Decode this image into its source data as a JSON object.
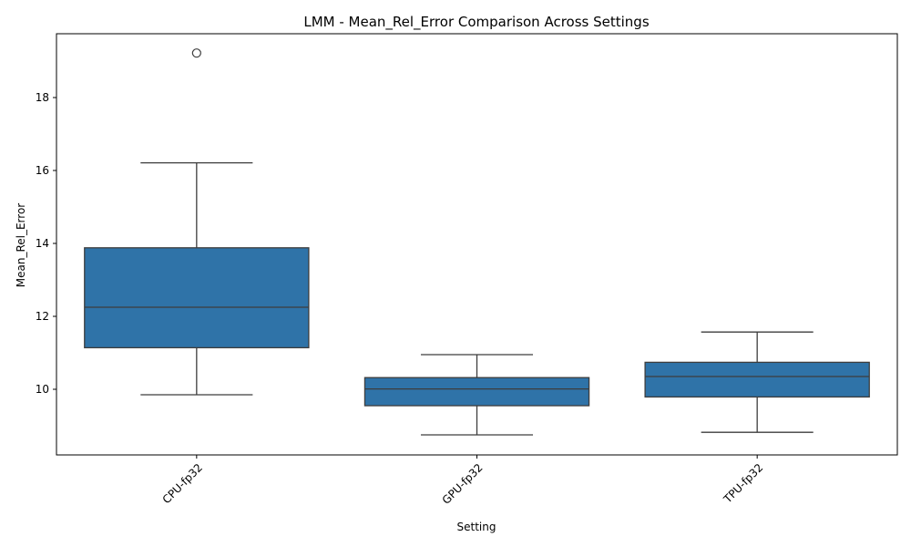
{
  "chart_data": {
    "type": "box",
    "title": "LMM - Mean_Rel_Error Comparison Across Settings",
    "xlabel": "Setting",
    "ylabel": "Mean_Rel_Error",
    "categories": [
      "CPU-fp32",
      "GPU-fp32",
      "TPU-fp32"
    ],
    "ylim": [
      8.2,
      19.75
    ],
    "yticks": [
      10,
      12,
      14,
      16,
      18
    ],
    "grid": false,
    "color": "#2f73a8",
    "line_color": "#3d3d3d",
    "boxes": [
      {
        "category": "CPU-fp32",
        "whisker_low": 9.85,
        "q1": 11.14,
        "median": 12.25,
        "q3": 13.88,
        "whisker_high": 16.21,
        "outliers": [
          19.22
        ]
      },
      {
        "category": "GPU-fp32",
        "whisker_low": 8.75,
        "q1": 9.55,
        "median": 10.01,
        "q3": 10.32,
        "whisker_high": 10.95,
        "outliers": []
      },
      {
        "category": "TPU-fp32",
        "whisker_low": 8.82,
        "q1": 9.79,
        "median": 10.35,
        "q3": 10.74,
        "whisker_high": 11.57,
        "outliers": []
      }
    ]
  }
}
